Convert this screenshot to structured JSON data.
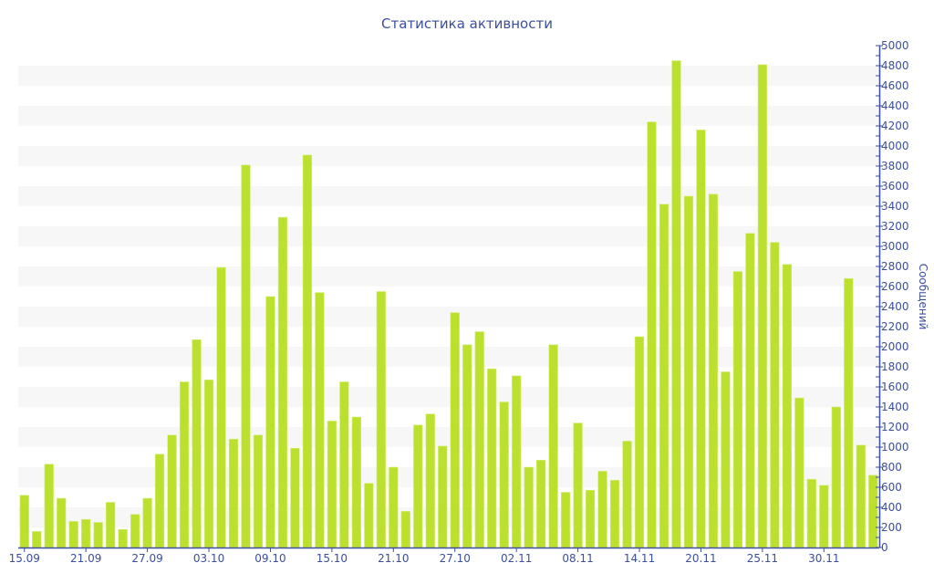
{
  "chart_data": {
    "type": "bar",
    "title": "Статистика активности",
    "ylabel": "Сообщений",
    "xlabel": "",
    "ylim": [
      0,
      5000
    ],
    "y_ticks": [
      0,
      200,
      400,
      600,
      800,
      1000,
      1200,
      1400,
      1600,
      1800,
      2000,
      2200,
      2400,
      2600,
      2800,
      3000,
      3200,
      3400,
      3600,
      3800,
      4000,
      4200,
      4400,
      4600,
      4800,
      5000
    ],
    "x_tick_labels": [
      "15.09",
      "21.09",
      "27.09",
      "03.10",
      "09.10",
      "15.10",
      "21.10",
      "27.10",
      "02.11",
      "08.11",
      "14.11",
      "20.11",
      "25.11",
      "30.11"
    ],
    "x_tick_every": 5,
    "values": [
      520,
      160,
      830,
      490,
      260,
      280,
      250,
      450,
      180,
      330,
      490,
      930,
      1120,
      1650,
      2070,
      1670,
      2790,
      1080,
      3810,
      1120,
      2500,
      3290,
      990,
      3910,
      2540,
      1260,
      1650,
      1300,
      640,
      2550,
      800,
      360,
      1220,
      1330,
      1010,
      2340,
      2020,
      2150,
      1780,
      1450,
      1710,
      800,
      870,
      2020,
      550,
      1240,
      570,
      760,
      670,
      1060,
      2100,
      4240,
      3420,
      4850,
      3500,
      4160,
      3520,
      1750,
      2750,
      3130,
      4810,
      3040,
      2820,
      1490,
      680,
      620,
      1400,
      2680,
      1020,
      720
    ],
    "bar_color": "#bce02e",
    "axis_color": "#3c4e9c",
    "band_color": "#f7f7f7",
    "y_axis_side": "right",
    "grid": "alternating bands"
  }
}
